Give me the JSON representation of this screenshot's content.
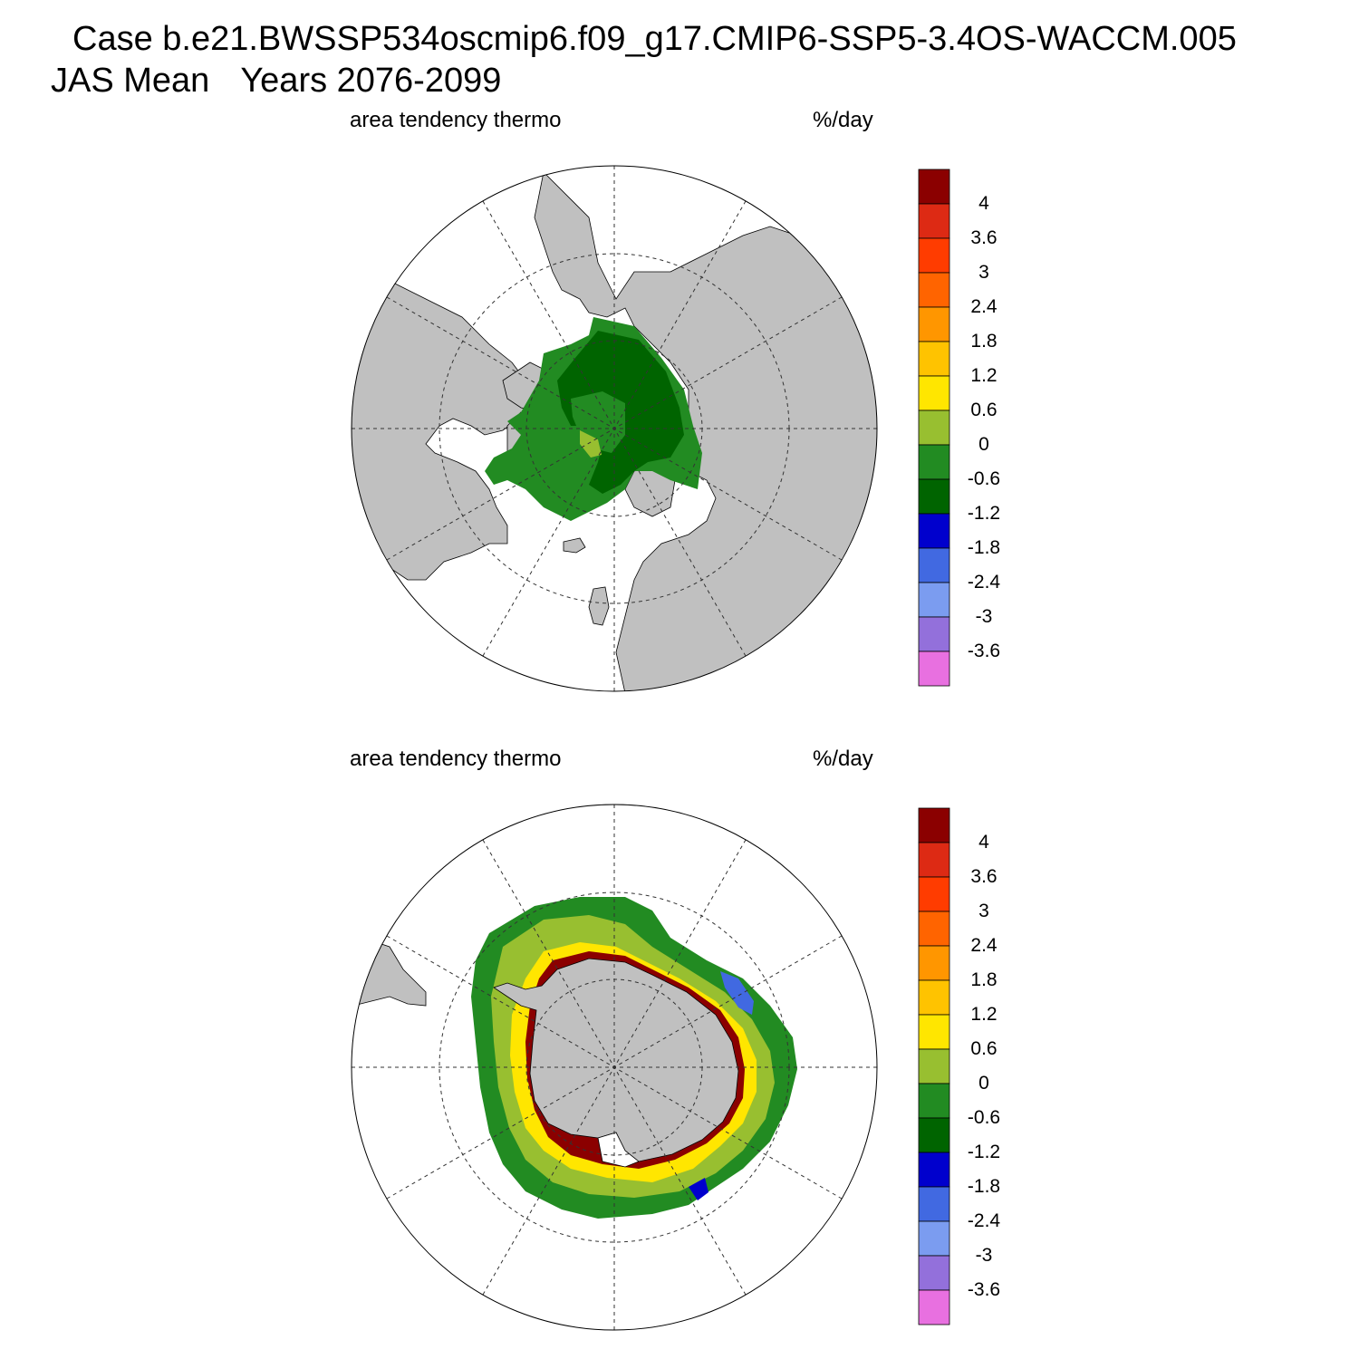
{
  "title": {
    "line1": "Case b.e21.BWSSP534oscmip6.f09_g17.CMIP6-SSP5-3.4OS-WACCM.005",
    "line2_season": "JAS Mean",
    "line2_years": "Years 2076-2099"
  },
  "colors": {
    "land": "#c0c0c0",
    "grid": "#333333",
    "ocean": "#ffffff"
  },
  "colorbar": {
    "labels": [
      "4",
      "3.6",
      "3",
      "2.4",
      "1.8",
      "1.2",
      "0.6",
      "0",
      "-0.6",
      "-1.2",
      "-1.8",
      "-2.4",
      "-3",
      "-3.6"
    ],
    "colors": [
      "#8b0000",
      "#dd2a14",
      "#ff3c00",
      "#ff6400",
      "#ff9600",
      "#ffc300",
      "#ffe600",
      "#98bf30",
      "#228b22",
      "#006400",
      "#0000cd",
      "#4169e1",
      "#7b9cf0",
      "#9370db",
      "#e870e0"
    ]
  },
  "panels": [
    {
      "id": "north",
      "left_label": "area tendency thermo",
      "right_label": "%/day"
    },
    {
      "id": "south",
      "left_label": "area tendency thermo",
      "right_label": "%/day"
    }
  ]
}
